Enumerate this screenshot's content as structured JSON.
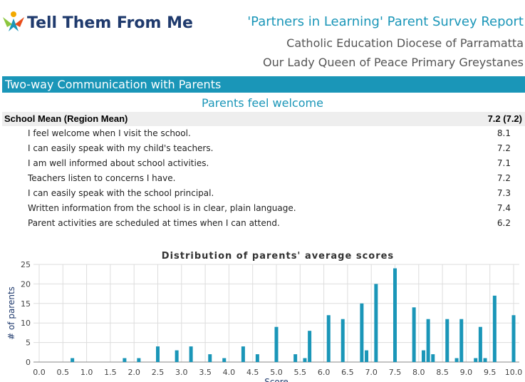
{
  "header": {
    "logo": "Tell Them From Me",
    "title": "'Partners in Learning' Parent Survey Report",
    "line2": "Catholic Education Diocese of Parramatta",
    "line3": "Our Lady Queen of Peace Primary Greystanes"
  },
  "section": {
    "title": "Two-way Communication with Parents",
    "subtitle": "Parents feel welcome"
  },
  "table": {
    "header": [
      "School Mean (Region Mean)",
      "7.2 (7.2)"
    ],
    "rows": [
      [
        "I feel welcome when I visit the school.",
        "8.1"
      ],
      [
        "I can easily speak with my child's teachers.",
        "7.2"
      ],
      [
        "I am well informed about school activities.",
        "7.1"
      ],
      [
        "Teachers listen to concerns I have.",
        "7.2"
      ],
      [
        "I can easily speak with the school principal.",
        "7.3"
      ],
      [
        "Written information from the school is in clear, plain language.",
        "7.4"
      ],
      [
        "Parent activities are scheduled at times when I can attend.",
        "6.2"
      ]
    ]
  },
  "chart_data": {
    "type": "bar",
    "title": "Distribution of parents' average scores",
    "x_label": "Score",
    "y_label": "# of parents",
    "color": "#1a96b8",
    "x": [
      0.7,
      1.8,
      2.1,
      2.5,
      2.9,
      3.2,
      3.6,
      3.9,
      4.3,
      4.6,
      5.0,
      5.4,
      5.6,
      5.7,
      6.1,
      6.4,
      6.8,
      6.9,
      7.1,
      7.5,
      7.9,
      8.1,
      8.2,
      8.3,
      8.6,
      8.8,
      8.9,
      9.2,
      9.3,
      9.4,
      9.6,
      10.0
    ],
    "values": [
      1,
      1,
      1,
      4,
      3,
      4,
      2,
      1,
      4,
      2,
      9,
      2,
      1,
      8,
      12,
      11,
      15,
      3,
      20,
      24,
      14,
      3,
      11,
      2,
      11,
      1,
      11,
      1,
      9,
      1,
      17,
      12
    ],
    "xlim": [
      0,
      10
    ],
    "xticks": [
      {
        "value": 0,
        "label": "0.0"
      },
      0.5,
      {
        "value": 1,
        "label": "1.0"
      },
      1.5,
      {
        "value": 2,
        "label": "2.0"
      },
      2.5,
      {
        "value": 3,
        "label": "3.0"
      },
      3.5,
      {
        "value": 4,
        "label": "4.0"
      },
      4.5,
      {
        "value": 5,
        "label": "5.0"
      },
      5.5,
      {
        "value": 6,
        "label": "6.0"
      },
      6.5,
      {
        "value": 7,
        "label": "7.0"
      },
      7.5,
      {
        "value": 8,
        "label": "8.0"
      },
      8.5,
      {
        "value": 9,
        "label": "9.0"
      },
      9.5,
      {
        "value": 10,
        "label": "10.0"
      }
    ],
    "ylim": [
      0,
      25
    ],
    "yticks": [
      0,
      5,
      10,
      15,
      20,
      25
    ],
    "grid": true
  }
}
